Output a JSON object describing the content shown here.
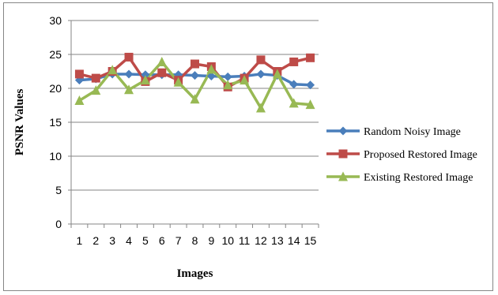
{
  "chart_data": {
    "type": "line",
    "title": "",
    "xlabel": "Images",
    "ylabel": "PSNR Values",
    "categories": [
      "1",
      "2",
      "3",
      "4",
      "5",
      "6",
      "7",
      "8",
      "9",
      "10",
      "11",
      "12",
      "13",
      "14",
      "15"
    ],
    "ylim": [
      0,
      30
    ],
    "yticks": [
      0,
      5,
      10,
      15,
      20,
      25,
      30
    ],
    "grid": "horizontal",
    "legend_position": "right",
    "series": [
      {
        "name": "Random Noisy Image",
        "color": "#4A7EBB",
        "marker": "diamond",
        "values": [
          21.2,
          21.4,
          22.1,
          22.1,
          22.0,
          22.0,
          22.0,
          21.9,
          21.8,
          21.7,
          21.8,
          22.1,
          21.9,
          20.6,
          20.5
        ]
      },
      {
        "name": "Proposed Restored Image",
        "color": "#BE4B48",
        "marker": "square",
        "values": [
          22.1,
          21.5,
          22.5,
          24.6,
          21.0,
          22.3,
          21.2,
          23.6,
          23.2,
          20.2,
          21.5,
          24.2,
          22.5,
          23.9,
          24.5
        ]
      },
      {
        "name": "Existing Restored Image",
        "color": "#98B954",
        "marker": "triangle",
        "values": [
          18.2,
          19.7,
          22.7,
          19.8,
          21.2,
          23.9,
          20.9,
          18.4,
          22.8,
          20.5,
          21.2,
          17.1,
          22.1,
          17.8,
          17.6
        ]
      }
    ]
  }
}
